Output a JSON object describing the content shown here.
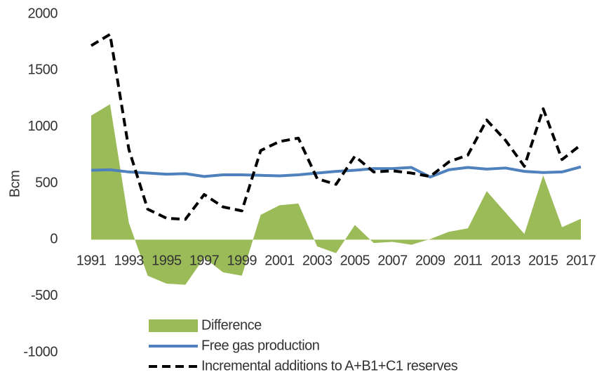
{
  "chart_data": {
    "type": "line",
    "y_label": "Bcm",
    "categories": [
      "1991",
      null,
      "1993",
      null,
      "1995",
      null,
      "1997",
      null,
      "1999",
      null,
      "2001",
      null,
      "2003",
      null,
      "2005",
      null,
      "2007",
      null,
      "2009",
      null,
      "2011",
      null,
      "2013",
      null,
      "2015",
      null,
      "2017"
    ],
    "ylim": [
      -1000,
      2000
    ],
    "yticks": [
      -1000,
      -500,
      0,
      500,
      1000,
      1500,
      2000
    ],
    "grid": false,
    "legend": "bottom",
    "series": [
      {
        "name": "Difference",
        "kind": "area",
        "color": "#9bbb59",
        "values": [
          1100,
          1200,
          150,
          -320,
          -390,
          -400,
          -160,
          -290,
          -320,
          220,
          305,
          320,
          -60,
          -120,
          130,
          -30,
          -20,
          -45,
          5,
          70,
          100,
          430,
          240,
          50,
          570,
          110,
          185
        ]
      },
      {
        "name": "Free gas production",
        "kind": "line",
        "color": "#4f81bd",
        "values": [
          615,
          620,
          600,
          590,
          580,
          585,
          560,
          575,
          575,
          570,
          565,
          575,
          590,
          605,
          615,
          630,
          630,
          640,
          555,
          620,
          640,
          625,
          635,
          605,
          595,
          600,
          645
        ]
      },
      {
        "name": "Incremental additions to A+B1+C1 reserves",
        "kind": "dashed",
        "color": "#000000",
        "values": [
          1720,
          1820,
          800,
          270,
          190,
          180,
          400,
          290,
          255,
          790,
          870,
          900,
          540,
          490,
          740,
          600,
          610,
          590,
          560,
          690,
          750,
          1060,
          880,
          650,
          1160,
          710,
          840
        ]
      }
    ]
  }
}
